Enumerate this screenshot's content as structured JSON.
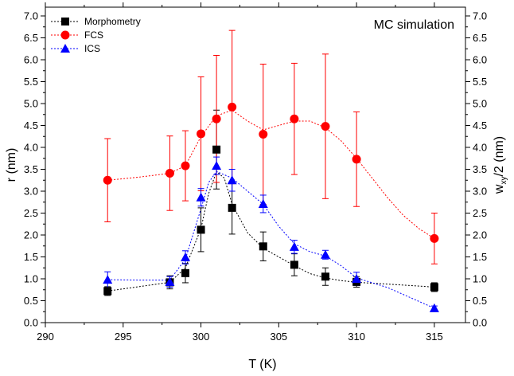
{
  "chart_data": {
    "type": "scatter",
    "annotation": "MC simulation",
    "xlabel": "T (K)",
    "ylabel_left": "r (nm)",
    "ylabel_right": "w",
    "ylabel_right_sub": "xy",
    "ylabel_right_rest": "/2 (nm)",
    "xlim": [
      290,
      317
    ],
    "ylim": [
      0.0,
      7.2
    ],
    "x_ticks": [
      "290",
      "295",
      "300",
      "305",
      "310",
      "315"
    ],
    "y_ticks": [
      "0.0",
      "0.5",
      "1.0",
      "1.5",
      "2.0",
      "2.5",
      "3.0",
      "3.5",
      "4.0",
      "4.5",
      "5.0",
      "5.5",
      "6.0",
      "6.5",
      "7.0"
    ],
    "legend_position": "top-left",
    "series": [
      {
        "name": "Morphometry",
        "color": "#000000",
        "marker": "square",
        "x": [
          294,
          298,
          299,
          300,
          301,
          302,
          304,
          306,
          308,
          310,
          315
        ],
        "y": [
          0.72,
          0.92,
          1.13,
          2.12,
          3.95,
          2.62,
          1.74,
          1.32,
          1.05,
          0.93,
          0.81
        ],
        "err": [
          0.1,
          0.15,
          0.22,
          0.5,
          0.9,
          0.6,
          0.33,
          0.25,
          0.2,
          0.12,
          0.1
        ],
        "fit_x": [
          294,
          296,
          298,
          299,
          300,
          300.5,
          301,
          301.5,
          302,
          303,
          304,
          305,
          306,
          307,
          308,
          309,
          310,
          312,
          315
        ],
        "fit_y": [
          0.72,
          0.82,
          0.92,
          1.25,
          2.15,
          2.95,
          3.45,
          3.3,
          2.7,
          2.05,
          1.7,
          1.5,
          1.3,
          1.12,
          1.02,
          0.96,
          0.92,
          0.88,
          0.81
        ]
      },
      {
        "name": "FCS",
        "color": "#ff0000",
        "marker": "circle",
        "x": [
          294,
          298,
          299,
          300,
          301,
          302,
          304,
          306,
          308,
          310,
          315
        ],
        "y": [
          3.25,
          3.41,
          3.58,
          4.31,
          4.65,
          4.92,
          4.3,
          4.65,
          4.48,
          3.73,
          1.92
        ],
        "err": [
          0.95,
          0.85,
          0.8,
          1.3,
          1.45,
          1.75,
          1.6,
          1.27,
          1.65,
          1.08,
          0.58
        ],
        "fit_x": [
          294,
          296,
          298,
          299,
          300,
          301,
          302,
          303,
          304,
          305,
          306,
          307,
          308,
          309,
          310,
          311,
          312,
          313,
          314,
          315
        ],
        "fit_y": [
          3.25,
          3.32,
          3.41,
          3.58,
          4.25,
          4.72,
          4.85,
          4.6,
          4.4,
          4.5,
          4.6,
          4.6,
          4.45,
          4.15,
          3.75,
          3.3,
          2.85,
          2.45,
          2.15,
          1.92
        ]
      },
      {
        "name": "ICS",
        "color": "#0000ff",
        "marker": "triangle",
        "x": [
          294,
          298,
          299,
          300,
          301,
          302,
          304,
          306,
          308,
          310,
          315
        ],
        "y": [
          0.98,
          0.93,
          1.49,
          2.86,
          3.58,
          3.25,
          2.71,
          1.73,
          1.55,
          1.0,
          0.33
        ],
        "err": [
          0.18,
          0.12,
          0.15,
          0.2,
          0.2,
          0.25,
          0.2,
          0.15,
          0.1,
          0.15,
          0.05
        ],
        "fit_x": [
          294,
          296,
          298,
          299,
          300,
          300.5,
          301,
          302,
          303,
          304,
          305,
          306,
          307,
          308,
          309,
          310,
          312,
          315
        ],
        "fit_y": [
          0.98,
          0.97,
          0.97,
          1.45,
          2.6,
          3.2,
          3.45,
          3.3,
          3.0,
          2.7,
          2.2,
          1.8,
          1.62,
          1.52,
          1.3,
          1.02,
          0.8,
          0.33
        ]
      }
    ]
  }
}
